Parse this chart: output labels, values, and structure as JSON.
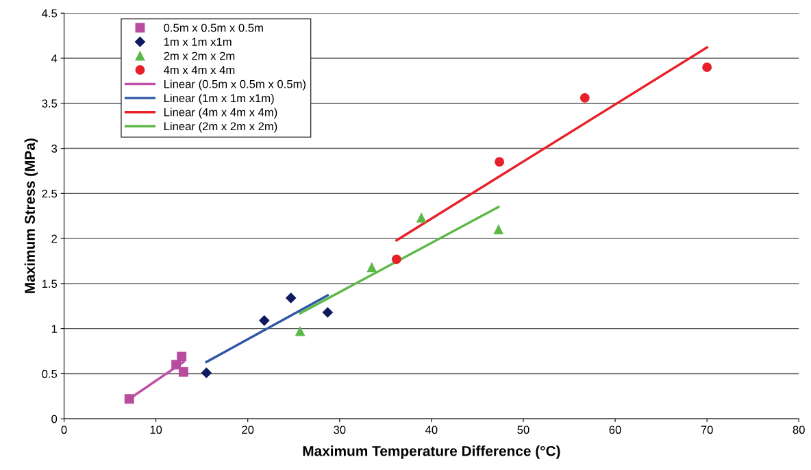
{
  "chart_data": {
    "type": "scatter",
    "xlabel": "Maximum Temperature Difference (°C)",
    "ylabel": "Maximum Stress (MPa)",
    "xlim": [
      0,
      80
    ],
    "xticks": [
      0,
      10,
      20,
      30,
      40,
      50,
      60,
      70,
      80
    ],
    "ylim": [
      0,
      4.5
    ],
    "yticks": [
      0,
      0.5,
      1,
      1.5,
      2,
      2.5,
      3,
      3.5,
      4,
      4.5
    ],
    "grid": "y",
    "legend": "top left",
    "series": [
      {
        "name": "0.5m x 0.5m x 0.5m",
        "marker": "square",
        "color": "#b84c9e",
        "x": [
          7.1,
          12.2,
          12.8,
          13.0
        ],
        "values": [
          0.22,
          0.6,
          0.69,
          0.52
        ]
      },
      {
        "name": "1m x 1m x1m",
        "marker": "diamond",
        "color": "#0f1a5e",
        "x": [
          15.5,
          21.8,
          24.7,
          28.7
        ],
        "values": [
          0.51,
          1.09,
          1.34,
          1.18
        ]
      },
      {
        "name": "2m x 2m x 2m",
        "marker": "triangle",
        "color": "#5cb947",
        "x": [
          25.7,
          33.5,
          38.9,
          47.3
        ],
        "values": [
          0.97,
          1.68,
          2.23,
          2.1
        ]
      },
      {
        "name": "4m x 4m x 4m",
        "marker": "circle",
        "color": "#e8202a",
        "x": [
          36.2,
          47.4,
          56.7,
          70.0
        ],
        "values": [
          1.77,
          2.85,
          3.56,
          3.9
        ]
      },
      {
        "name": "Linear (0.5m x 0.5m x 0.5m)",
        "type": "line",
        "color": "#c050a8",
        "x": [
          7.1,
          13.0
        ],
        "values": [
          0.22,
          0.63
        ]
      },
      {
        "name": "Linear (1m x 1m x1m)",
        "type": "line",
        "color": "#2f56a6",
        "x": [
          15.5,
          28.7
        ],
        "values": [
          0.63,
          1.37
        ]
      },
      {
        "name": "Linear (4m x 4m x 4m)",
        "type": "line",
        "color": "#e8202a",
        "x": [
          36.2,
          70.0
        ],
        "values": [
          1.98,
          4.12
        ]
      },
      {
        "name": "Linear (2m x 2m x 2m)",
        "type": "line",
        "color": "#5cb947",
        "x": [
          25.7,
          47.3
        ],
        "values": [
          1.17,
          2.35
        ]
      }
    ]
  }
}
